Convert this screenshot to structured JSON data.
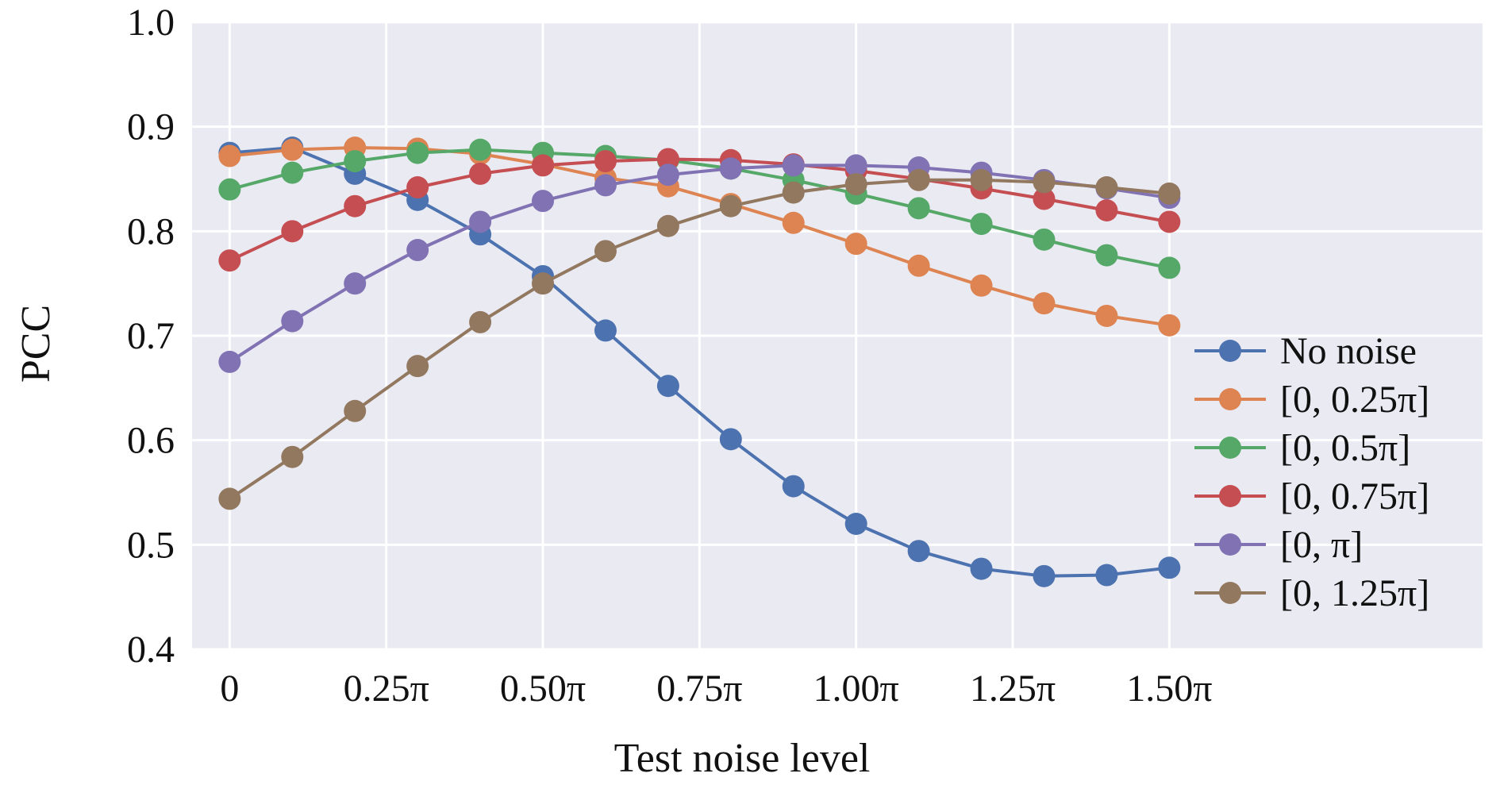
{
  "chart_data": {
    "type": "line",
    "title": "",
    "xlabel": "Test noise level",
    "ylabel": "PCC",
    "xlim": [
      -0.06,
      2.0
    ],
    "ylim": [
      0.4,
      1.0
    ],
    "x_ticks": [
      {
        "value": 0,
        "label": "0"
      },
      {
        "value": 0.25,
        "label": "0.25π"
      },
      {
        "value": 0.5,
        "label": "0.50π"
      },
      {
        "value": 0.75,
        "label": "0.75π"
      },
      {
        "value": 1.0,
        "label": "1.00π"
      },
      {
        "value": 1.25,
        "label": "1.25π"
      },
      {
        "value": 1.5,
        "label": "1.50π"
      }
    ],
    "y_ticks": [
      {
        "value": 0.4,
        "label": "0.4"
      },
      {
        "value": 0.5,
        "label": "0.5"
      },
      {
        "value": 0.6,
        "label": "0.6"
      },
      {
        "value": 0.7,
        "label": "0.7"
      },
      {
        "value": 0.8,
        "label": "0.8"
      },
      {
        "value": 0.9,
        "label": "0.9"
      },
      {
        "value": 1.0,
        "label": "1.0"
      }
    ],
    "grid": true,
    "background": "#eaeaf2",
    "legend_position": "lower-right",
    "x": [
      0,
      0.1,
      0.2,
      0.3,
      0.4,
      0.5,
      0.6,
      0.7,
      0.8,
      0.9,
      1.0,
      1.1,
      1.2,
      1.3,
      1.4,
      1.5
    ],
    "series": [
      {
        "name": "No noise",
        "color": "#4c72b0",
        "values": [
          0.875,
          0.88,
          0.855,
          0.83,
          0.797,
          0.757,
          0.705,
          0.652,
          0.601,
          0.556,
          0.52,
          0.494,
          0.477,
          0.47,
          0.471,
          0.478
        ]
      },
      {
        "name": "[0, 0.25π]",
        "color": "#dd8452",
        "values": [
          0.872,
          0.878,
          0.88,
          0.879,
          0.874,
          0.864,
          0.851,
          0.843,
          0.826,
          0.808,
          0.788,
          0.767,
          0.748,
          0.731,
          0.719,
          0.71
        ]
      },
      {
        "name": "[0, 0.5π]",
        "color": "#55a868",
        "values": [
          0.84,
          0.856,
          0.867,
          0.875,
          0.878,
          0.875,
          0.872,
          0.868,
          0.86,
          0.849,
          0.836,
          0.822,
          0.807,
          0.792,
          0.777,
          0.765
        ]
      },
      {
        "name": "[0, 0.75π]",
        "color": "#c44e52",
        "values": [
          0.772,
          0.8,
          0.824,
          0.842,
          0.855,
          0.863,
          0.867,
          0.869,
          0.868,
          0.864,
          0.858,
          0.85,
          0.841,
          0.831,
          0.82,
          0.809
        ]
      },
      {
        "name": "[0, π]",
        "color": "#8172b3",
        "values": [
          0.675,
          0.714,
          0.75,
          0.782,
          0.809,
          0.829,
          0.844,
          0.854,
          0.86,
          0.863,
          0.863,
          0.861,
          0.856,
          0.849,
          0.841,
          0.832
        ]
      },
      {
        "name": "[0, 1.25π]",
        "color": "#937860",
        "values": [
          0.544,
          0.584,
          0.628,
          0.671,
          0.713,
          0.75,
          0.781,
          0.805,
          0.824,
          0.837,
          0.845,
          0.849,
          0.849,
          0.847,
          0.842,
          0.836
        ]
      }
    ]
  }
}
